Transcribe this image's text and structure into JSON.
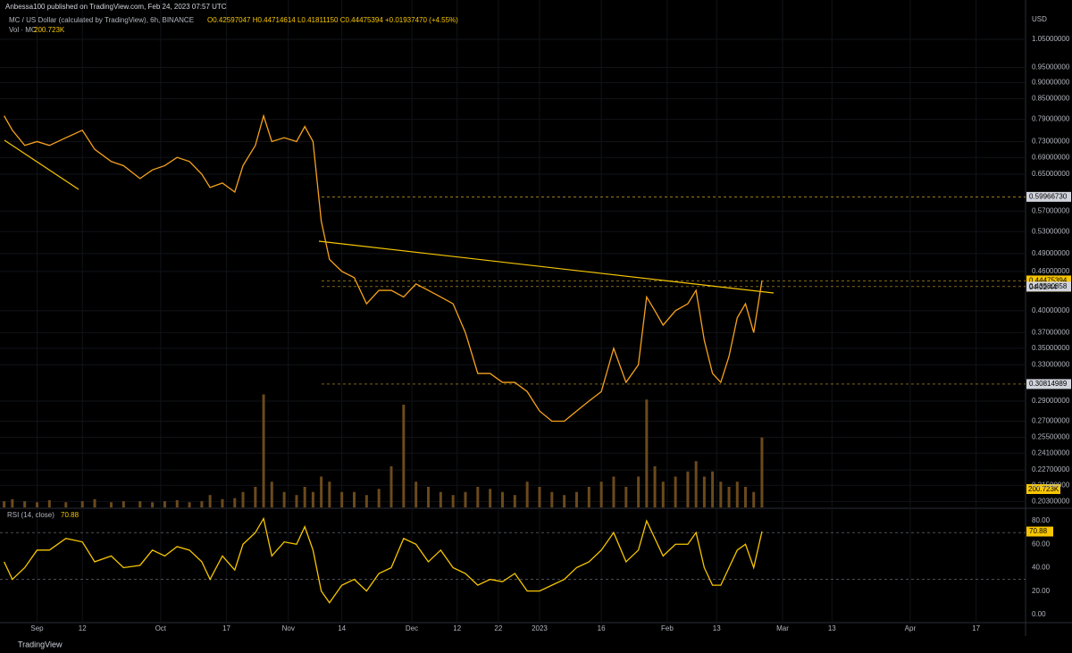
{
  "header": {
    "publisher": "Anbessa100 published on TradingView.com, Feb 24, 2023 07:57 UTC",
    "symbol": "MC / US Dollar (calculated by TradingView), 6h, BINANCE",
    "ohlc": "O0.42597047 H0.44714614 L0.41811150 C0.44475394 +0.01937470 (+4.55%)",
    "volume_legend": "Vol · MC",
    "volume_value": "200.723K",
    "rsi_legend": "RSI (14, close)",
    "rsi_value": "70.88",
    "countdown": "04:02:44"
  },
  "footer": {
    "brand": "TradingView"
  },
  "chart_data": [
    {
      "type": "line",
      "unit_label": "USD",
      "log_scale": true,
      "color": "#f7a21b",
      "volume_color": "#6b4a1c",
      "x": [
        -8,
        -6,
        -3,
        0,
        3,
        7,
        11,
        14,
        18,
        21,
        25,
        28,
        31,
        34,
        37,
        40,
        42,
        45,
        48,
        50,
        53,
        55,
        57,
        60,
        63,
        65,
        67,
        69,
        71,
        74,
        77,
        80,
        83,
        86,
        89,
        92,
        95,
        98,
        101,
        104,
        107,
        110,
        113,
        116,
        119,
        122,
        125,
        128,
        131,
        134,
        137,
        140,
        143,
        146,
        148,
        150,
        152,
        155,
        158,
        160,
        162,
        164,
        166,
        168,
        170,
        172,
        174,
        176
      ],
      "values": [
        0.8,
        0.76,
        0.72,
        0.73,
        0.72,
        0.74,
        0.76,
        0.71,
        0.68,
        0.67,
        0.64,
        0.66,
        0.67,
        0.69,
        0.68,
        0.65,
        0.62,
        0.63,
        0.61,
        0.67,
        0.72,
        0.8,
        0.73,
        0.74,
        0.73,
        0.77,
        0.73,
        0.55,
        0.48,
        0.46,
        0.45,
        0.41,
        0.43,
        0.43,
        0.42,
        0.44,
        0.43,
        0.42,
        0.41,
        0.37,
        0.32,
        0.32,
        0.31,
        0.31,
        0.3,
        0.28,
        0.27,
        0.27,
        0.28,
        0.29,
        0.3,
        0.35,
        0.31,
        0.33,
        0.42,
        0.4,
        0.38,
        0.4,
        0.41,
        0.43,
        0.36,
        0.32,
        0.31,
        0.34,
        0.39,
        0.41,
        0.37,
        0.445
      ],
      "volume": [
        60,
        80,
        60,
        50,
        70,
        50,
        60,
        80,
        50,
        60,
        60,
        50,
        60,
        70,
        50,
        60,
        120,
        80,
        90,
        150,
        200,
        1100,
        250,
        150,
        120,
        200,
        150,
        300,
        250,
        150,
        150,
        120,
        180,
        400,
        1000,
        250,
        200,
        150,
        120,
        150,
        200,
        180,
        150,
        120,
        250,
        200,
        150,
        120,
        150,
        200,
        250,
        300,
        200,
        300,
        1050,
        400,
        250,
        300,
        350,
        450,
        300,
        350,
        250,
        200,
        250,
        200,
        150,
        680
      ],
      "xlim": [
        -9,
        240
      ],
      "xticks": [
        {
          "value": 0,
          "label": "Sep"
        },
        {
          "value": 11,
          "label": "12"
        },
        {
          "value": 30,
          "label": "Oct"
        },
        {
          "value": 46,
          "label": "17"
        },
        {
          "value": 61,
          "label": "Nov"
        },
        {
          "value": 74,
          "label": "14"
        },
        {
          "value": 91,
          "label": "Dec"
        },
        {
          "value": 102,
          "label": "12"
        },
        {
          "value": 112,
          "label": "22"
        },
        {
          "value": 122,
          "label": "2023"
        },
        {
          "value": 137,
          "label": "16"
        },
        {
          "value": 153,
          "label": "Feb"
        },
        {
          "value": 165,
          "label": "13"
        },
        {
          "value": 181,
          "label": "Mar"
        },
        {
          "value": 193,
          "label": "13"
        },
        {
          "value": 212,
          "label": "Apr"
        },
        {
          "value": 228,
          "label": "17"
        }
      ],
      "ylim": [
        0.2,
        1.2
      ],
      "yticks": [
        {
          "value": 1.05,
          "label": "1.05000000"
        },
        {
          "value": 0.95,
          "label": "0.95000000"
        },
        {
          "value": 0.9,
          "label": "0.90000000"
        },
        {
          "value": 0.85,
          "label": "0.85000000"
        },
        {
          "value": 0.79,
          "label": "0.79000000"
        },
        {
          "value": 0.73,
          "label": "0.73000000"
        },
        {
          "value": 0.69,
          "label": "0.69000000"
        },
        {
          "value": 0.65,
          "label": "0.65000000"
        },
        {
          "value": 0.57,
          "label": "0.57000000"
        },
        {
          "value": 0.53,
          "label": "0.53000000"
        },
        {
          "value": 0.49,
          "label": "0.49000000"
        },
        {
          "value": 0.46,
          "label": "0.46000000"
        },
        {
          "value": 0.4,
          "label": "0.40000000"
        },
        {
          "value": 0.37,
          "label": "0.37000000"
        },
        {
          "value": 0.35,
          "label": "0.35000000"
        },
        {
          "value": 0.33,
          "label": "0.33000000"
        },
        {
          "value": 0.29,
          "label": "0.29000000"
        },
        {
          "value": 0.27,
          "label": "0.27000000"
        },
        {
          "value": 0.255,
          "label": "0.25500000"
        },
        {
          "value": 0.241,
          "label": "0.24100000"
        },
        {
          "value": 0.227,
          "label": "0.22700000"
        },
        {
          "value": 0.215,
          "label": "0.21500000"
        },
        {
          "value": 0.203,
          "label": "0.20300000"
        }
      ],
      "price_labels": [
        {
          "value": 0.5996673,
          "label": "0.59966730",
          "color": "#d1d4dc"
        },
        {
          "value": 0.44475394,
          "label": "0.44475394",
          "color": "#f7c600"
        },
        {
          "value": 0.43580858,
          "label": "0.43580858",
          "color": "#d1d4dc"
        },
        {
          "value": 0.30814989,
          "label": "0.30814989",
          "color": "#d1d4dc"
        }
      ]
    },
    {
      "type": "line",
      "color": "#f7c600",
      "x": [
        -8,
        -6,
        -3,
        0,
        3,
        7,
        11,
        14,
        18,
        21,
        25,
        28,
        31,
        34,
        37,
        40,
        42,
        45,
        48,
        50,
        53,
        55,
        57,
        60,
        63,
        65,
        67,
        69,
        71,
        74,
        77,
        80,
        83,
        86,
        89,
        92,
        95,
        98,
        101,
        104,
        107,
        110,
        113,
        116,
        119,
        122,
        125,
        128,
        131,
        134,
        137,
        140,
        143,
        146,
        148,
        150,
        152,
        155,
        158,
        160,
        162,
        164,
        166,
        168,
        170,
        172,
        174,
        176
      ],
      "values": [
        45,
        30,
        40,
        55,
        55,
        65,
        62,
        45,
        50,
        40,
        42,
        55,
        50,
        58,
        55,
        45,
        30,
        50,
        38,
        60,
        70,
        82,
        50,
        62,
        60,
        75,
        55,
        20,
        10,
        25,
        30,
        20,
        35,
        40,
        65,
        60,
        45,
        55,
        40,
        35,
        25,
        30,
        28,
        35,
        20,
        20,
        25,
        30,
        40,
        45,
        55,
        70,
        45,
        55,
        80,
        65,
        50,
        60,
        60,
        70,
        40,
        25,
        25,
        40,
        55,
        60,
        40,
        70.88
      ],
      "xlim": [
        -9,
        240
      ],
      "ylim": [
        -7,
        90
      ],
      "yticks": [
        {
          "value": 80,
          "label": "80.00"
        },
        {
          "value": 60,
          "label": "60.00"
        },
        {
          "value": 40,
          "label": "40.00"
        },
        {
          "value": 20,
          "label": "20.00"
        },
        {
          "value": 0,
          "label": "0.00"
        }
      ],
      "bands": [
        70,
        30
      ]
    }
  ]
}
